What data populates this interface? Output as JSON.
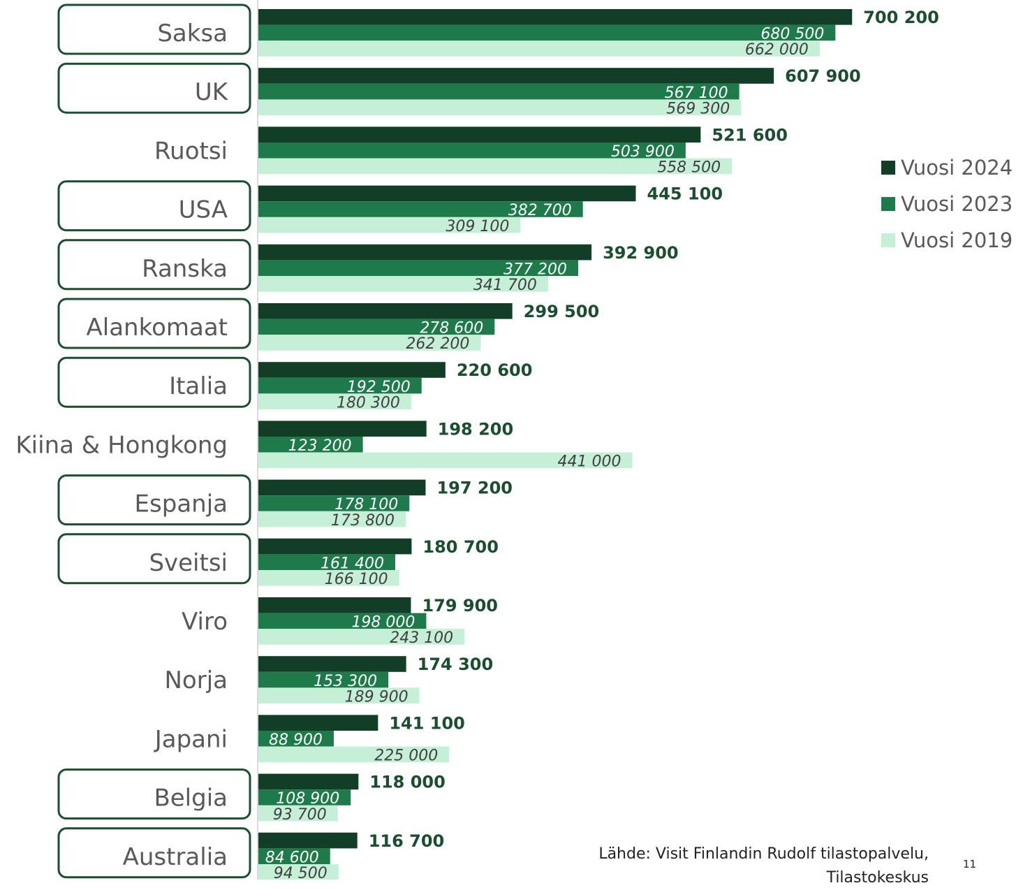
{
  "chart_data": {
    "type": "bar",
    "orientation": "horizontal",
    "categories": [
      "Saksa",
      "UK",
      "Ruotsi",
      "USA",
      "Ranska",
      "Alankomaat",
      "Italia",
      "Kiina & Hongkong",
      "Espanja",
      "Sveitsi",
      "Viro",
      "Norja",
      "Japani",
      "Belgia",
      "Australia"
    ],
    "highlighted": [
      "Saksa",
      "UK",
      "USA",
      "Ranska",
      "Alankomaat",
      "Italia",
      "Espanja",
      "Sveitsi",
      "Belgia",
      "Australia"
    ],
    "series": [
      {
        "name": "Vuosi 2024",
        "color": "#123d26",
        "values": [
          700200,
          607900,
          521600,
          445100,
          392900,
          299500,
          220600,
          198200,
          197200,
          180700,
          179900,
          174300,
          141100,
          118000,
          116700
        ],
        "labels": [
          "700 200",
          "607 900",
          "521 600",
          "445 100",
          "392 900",
          "299 500",
          "220 600",
          "198 200",
          "197 200",
          "180 700",
          "179 900",
          "174 300",
          "141 100",
          "118 000",
          "116 700"
        ]
      },
      {
        "name": "Vuosi 2023",
        "color": "#1e7a4b",
        "values": [
          680500,
          567100,
          503900,
          382700,
          377200,
          278600,
          192500,
          123200,
          178100,
          161400,
          198000,
          153300,
          88900,
          108900,
          84600
        ],
        "labels": [
          "680 500",
          "567 100",
          "503 900",
          "382 700",
          "377 200",
          "278 600",
          "192 500",
          "123 200",
          "178 100",
          "161 400",
          "198 000",
          "153 300",
          "88 900",
          "108 900",
          "84 600"
        ]
      },
      {
        "name": "Vuosi 2019",
        "color": "#c6efd8",
        "values": [
          662000,
          569300,
          558500,
          309100,
          341700,
          262200,
          180300,
          441000,
          173800,
          166100,
          243100,
          189900,
          225000,
          93700,
          94500
        ],
        "labels": [
          "662 000",
          "569 300",
          "558 500",
          "309 100",
          "341 700",
          "262 200",
          "180 300",
          "441 000",
          "173 800",
          "166 100",
          "243 100",
          "189 900",
          "225 000",
          "93 700",
          "94 500"
        ]
      }
    ],
    "legend_position": "right",
    "grid": false
  },
  "legend": [
    {
      "label": "Vuosi 2024",
      "color": "#123d26"
    },
    {
      "label": "Vuosi 2023",
      "color": "#1e7a4b"
    },
    {
      "label": "Vuosi 2019",
      "color": "#c6efd8"
    }
  ],
  "source_lines": [
    "Lähde: Visit Finlandin Rudolf tilastopalvelu,",
    "Tilastokeskus"
  ],
  "page_number": "11"
}
